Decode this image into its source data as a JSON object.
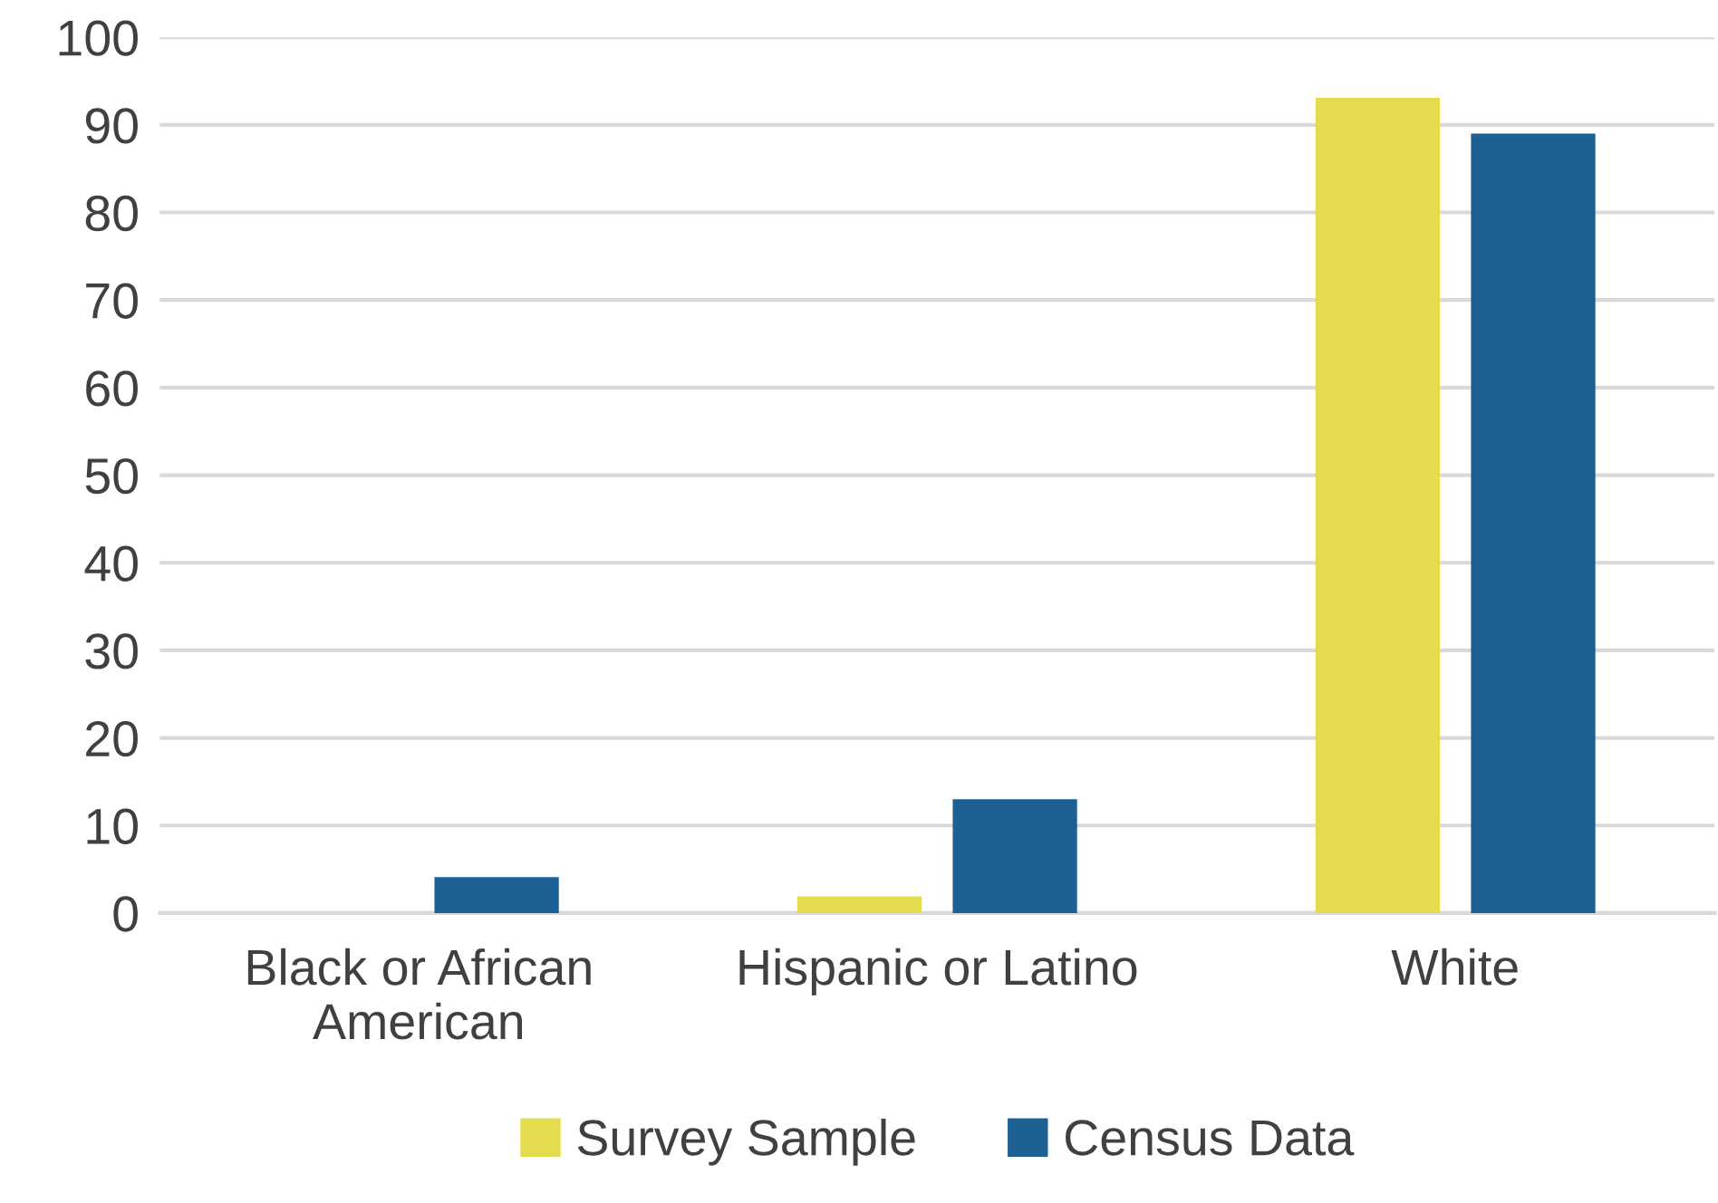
{
  "chart_data": {
    "type": "bar",
    "categories": [
      "Black or African\nAmerican",
      "Hispanic or Latino",
      "White"
    ],
    "series": [
      {
        "name": "Survey Sample",
        "color": "#e3dc4f",
        "values": [
          0,
          1.9,
          93.1
        ]
      },
      {
        "name": "Census Data",
        "color": "#1d6194",
        "values": [
          4.1,
          13.0,
          89.0
        ]
      }
    ],
    "ylim": [
      0,
      100
    ],
    "yticks": [
      0,
      10,
      20,
      30,
      40,
      50,
      60,
      70,
      80,
      90,
      100
    ],
    "grid": "y",
    "legend": "bottom"
  }
}
